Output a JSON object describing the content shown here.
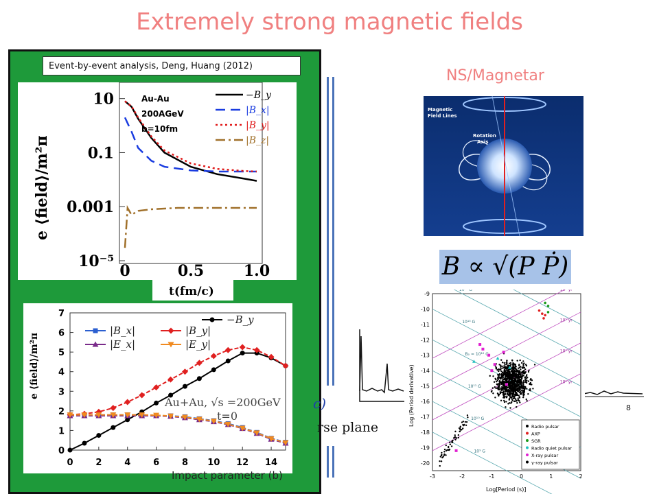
{
  "title": "Extremely strong magnetic fields",
  "caption": "Event-by-event analysis, Deng, Huang (2012)",
  "ns_label": "NS/Magnetar",
  "formula": "B ∝ √(P Ṗ)",
  "impact_label": "Impact parameter (b)",
  "overlay_c": "c)",
  "overlay_plane": "rse plane",
  "colors": {
    "title": "#f08080",
    "green": "#1e9a3a",
    "blue_divider": "#4a72b8",
    "formula_bg": "#a7c2e8"
  },
  "chart_data": [
    {
      "type": "line",
      "ylabel": "e ⟨field⟩/m²π",
      "xlabel": "t(fm/c)",
      "annotation": [
        "Au-Au",
        "200AGeV",
        "b=10fm"
      ],
      "y_ticks": [
        "10",
        "0.1",
        "0.001",
        "10⁻⁵"
      ],
      "x_ticks": [
        "0",
        "0.5",
        "1.0"
      ],
      "xlim": [
        0,
        1.0
      ],
      "log_y": true,
      "ylim_log10": [
        -5,
        1.5
      ],
      "series": [
        {
          "name": "−B_y",
          "color": "#000000",
          "dash": "",
          "x": [
            0,
            0.05,
            0.1,
            0.2,
            0.3,
            0.5,
            0.7,
            0.9,
            1.0
          ],
          "y": [
            8,
            5,
            1.8,
            0.35,
            0.1,
            0.03,
            0.016,
            0.011,
            0.009
          ]
        },
        {
          "name": "|B_x|",
          "color": "#1a3ce0",
          "dash": "14,8",
          "x": [
            0,
            0.05,
            0.1,
            0.2,
            0.3,
            0.5,
            0.7,
            0.9,
            1.0
          ],
          "y": [
            2,
            0.6,
            0.15,
            0.05,
            0.03,
            0.022,
            0.02,
            0.02,
            0.02
          ]
        },
        {
          "name": "|B_y|",
          "color": "#e01a1a",
          "dash": "3,4",
          "x": [
            0,
            0.05,
            0.1,
            0.2,
            0.3,
            0.5,
            0.7,
            0.9,
            1.0
          ],
          "y": [
            8,
            5.2,
            2,
            0.4,
            0.12,
            0.04,
            0.025,
            0.021,
            0.02
          ]
        },
        {
          "name": "|B_z|",
          "color": "#a0702a",
          "dash": "14,5,3,5",
          "x": [
            0,
            0.02,
            0.05,
            0.1,
            0.2,
            0.4,
            0.6,
            0.8,
            1.0
          ],
          "y": [
            3e-05,
            0.0009,
            0.0005,
            0.0007,
            0.0008,
            0.0009,
            0.0009,
            0.0009,
            0.0009
          ]
        }
      ]
    },
    {
      "type": "line",
      "ylabel": "e ⟨field⟩/m²π",
      "xlabel": "",
      "annotation": [
        "Au+Au, √s =200GeV",
        "t=0"
      ],
      "x_ticks": [
        "0",
        "2",
        "4",
        "6",
        "8",
        "10",
        "12",
        "14"
      ],
      "y_ticks": [
        "0",
        "1",
        "2",
        "3",
        "4",
        "5",
        "6",
        "7"
      ],
      "xlim": [
        0,
        15
      ],
      "ylim": [
        0,
        7
      ],
      "series": [
        {
          "name": "−B_y",
          "color": "#000000",
          "marker": "circle",
          "x": [
            0,
            1,
            2,
            3,
            4,
            5,
            6,
            7,
            8,
            9,
            10,
            11,
            12,
            13,
            14,
            15
          ],
          "y": [
            0,
            0.35,
            0.75,
            1.15,
            1.55,
            1.95,
            2.4,
            2.8,
            3.25,
            3.65,
            4.1,
            4.55,
            4.95,
            4.95,
            4.7,
            4.3
          ]
        },
        {
          "name": "|B_x|",
          "color": "#2b5fd0",
          "marker": "square",
          "x": [
            0,
            1,
            2,
            3,
            4,
            5,
            6,
            7,
            8,
            9,
            10,
            11,
            12,
            13,
            14,
            15
          ],
          "y": [
            1.8,
            1.8,
            1.8,
            1.8,
            1.8,
            1.8,
            1.75,
            1.75,
            1.7,
            1.6,
            1.5,
            1.35,
            1.15,
            0.9,
            0.6,
            0.4
          ]
        },
        {
          "name": "|B_y|",
          "color": "#e02020",
          "marker": "diamond",
          "x": [
            0,
            1,
            2,
            3,
            4,
            5,
            6,
            7,
            8,
            9,
            10,
            11,
            12,
            13,
            14,
            15
          ],
          "y": [
            1.8,
            1.85,
            1.95,
            2.15,
            2.45,
            2.8,
            3.2,
            3.6,
            4.0,
            4.45,
            4.8,
            5.1,
            5.25,
            5.1,
            4.75,
            4.3
          ]
        },
        {
          "name": "|E_x|",
          "color": "#7a2b8a",
          "marker": "triangle",
          "x": [
            0,
            1,
            2,
            3,
            4,
            5,
            6,
            7,
            8,
            9,
            10,
            11,
            12,
            13,
            14,
            15
          ],
          "y": [
            1.75,
            1.75,
            1.75,
            1.75,
            1.75,
            1.75,
            1.75,
            1.72,
            1.65,
            1.55,
            1.45,
            1.3,
            1.1,
            0.85,
            0.55,
            0.35
          ]
        },
        {
          "name": "|E_y|",
          "color": "#f08a20",
          "marker": "triangle-down",
          "x": [
            0,
            1,
            2,
            3,
            4,
            5,
            6,
            7,
            8,
            9,
            10,
            11,
            12,
            13,
            14,
            15
          ],
          "y": [
            1.8,
            1.8,
            1.8,
            1.8,
            1.8,
            1.8,
            1.78,
            1.74,
            1.68,
            1.58,
            1.48,
            1.32,
            1.12,
            0.88,
            0.58,
            0.38
          ]
        }
      ]
    },
    {
      "type": "scatter",
      "xlabel": "Log[Period (s)]",
      "ylabel": "Log (Period derivative)",
      "x_ticks": [
        "-3",
        "-2",
        "-1",
        "0",
        "1",
        "2"
      ],
      "y_ticks": [
        "-9",
        "-10",
        "-11",
        "-12",
        "-13",
        "-14",
        "-15",
        "-16",
        "-17",
        "-18",
        "-19",
        "-20"
      ],
      "xlim": [
        -3,
        2
      ],
      "ylim": [
        -20.5,
        -9
      ],
      "legend": [
        "Radio pulsar",
        "AXP",
        "SGR",
        "Radio quiet pulsar",
        "X-ray pulsar",
        "γ-ray pulsar"
      ],
      "field_lines": [
        "10¹⁵ G",
        "10¹⁴ G",
        "10¹³ G",
        "B₀ = 10¹² G",
        "10¹¹ G",
        "10¹⁰ G",
        "10⁹ G"
      ],
      "age_lines": [
        "10³ yr",
        "10⁵ yr",
        "10⁷ yr",
        "10⁹ yr"
      ]
    }
  ]
}
